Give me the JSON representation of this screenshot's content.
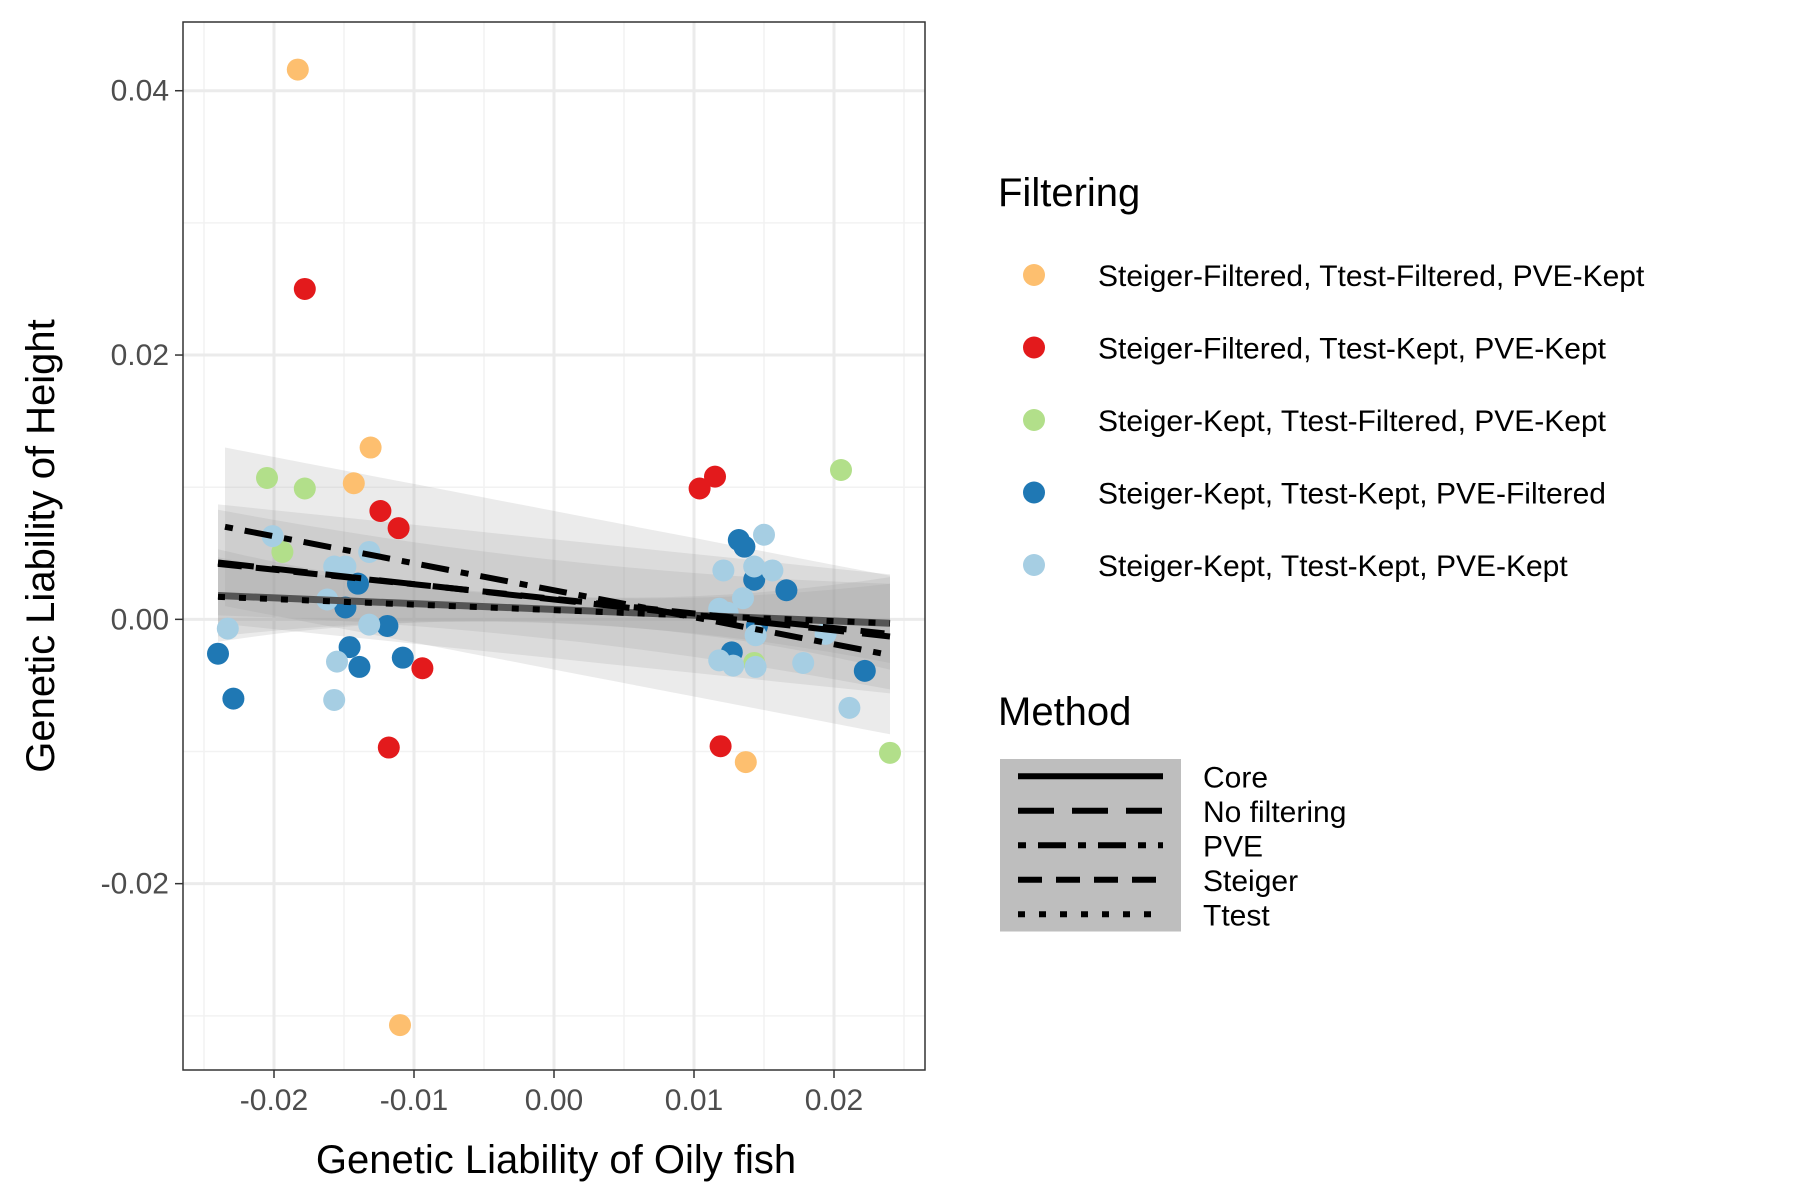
{
  "chart_data": {
    "type": "scatter",
    "title": "",
    "xlabel": "Genetic Liability of Oily fish",
    "ylabel": "Genetic Liability of Height",
    "xlim": [
      -0.0265,
      0.0265
    ],
    "ylim": [
      -0.0341,
      0.0452
    ],
    "x_ticks": [
      -0.02,
      -0.01,
      0.0,
      0.01,
      0.02
    ],
    "x_tick_labels": [
      "-0.02",
      "-0.01",
      "0.00",
      "0.01",
      "0.02"
    ],
    "y_ticks": [
      -0.02,
      0.0,
      0.02,
      0.04
    ],
    "y_tick_labels": [
      "-0.02",
      "0.00",
      "0.02",
      "0.04"
    ],
    "grid": true,
    "legend_position": "right",
    "filtering_legend": {
      "title": "Filtering",
      "entries": [
        {
          "label": "Steiger-Filtered, Ttest-Filtered, PVE-Kept",
          "color": "#FDBF6F"
        },
        {
          "label": "Steiger-Filtered, Ttest-Kept, PVE-Kept",
          "color": "#E31A1C"
        },
        {
          "label": "Steiger-Kept, Ttest-Filtered, PVE-Kept",
          "color": "#B2DF8A"
        },
        {
          "label": "Steiger-Kept, Ttest-Kept, PVE-Filtered",
          "color": "#1F78B4"
        },
        {
          "label": "Steiger-Kept, Ttest-Kept, PVE-Kept",
          "color": "#A6CEE3"
        }
      ]
    },
    "method_legend": {
      "title": "Method",
      "entries": [
        {
          "label": "Core",
          "dash": "none"
        },
        {
          "label": "No filtering",
          "dash": "long-dash"
        },
        {
          "label": "PVE",
          "dash": "dot-dash"
        },
        {
          "label": "Steiger",
          "dash": "dash"
        },
        {
          "label": "Ttest",
          "dash": "dotted"
        }
      ]
    },
    "series": [
      {
        "name": "Steiger-Filtered, Ttest-Filtered, PVE-Kept",
        "color": "#FDBF6F",
        "points": [
          [
            -0.0183,
            0.0416
          ],
          [
            -0.0131,
            0.013
          ],
          [
            -0.0143,
            0.0103
          ],
          [
            0.0137,
            -0.0108
          ],
          [
            -0.011,
            -0.0307
          ]
        ]
      },
      {
        "name": "Steiger-Filtered, Ttest-Kept, PVE-Kept",
        "color": "#E31A1C",
        "points": [
          [
            -0.0178,
            0.025
          ],
          [
            -0.0124,
            0.0082
          ],
          [
            -0.0111,
            0.0069
          ],
          [
            -0.0094,
            -0.0037
          ],
          [
            -0.0118,
            -0.0097
          ],
          [
            0.0104,
            0.0099
          ],
          [
            0.0115,
            0.0108
          ],
          [
            0.0119,
            -0.0096
          ]
        ]
      },
      {
        "name": "Steiger-Kept, Ttest-Filtered, PVE-Kept",
        "color": "#B2DF8A",
        "points": [
          [
            -0.0205,
            0.0107
          ],
          [
            -0.0178,
            0.0099
          ],
          [
            -0.0194,
            0.0051
          ],
          [
            0.0205,
            0.0113
          ],
          [
            0.0143,
            -0.0033
          ],
          [
            0.024,
            -0.0101
          ]
        ]
      },
      {
        "name": "Steiger-Kept, Ttest-Kept, PVE-Filtered",
        "color": "#1F78B4",
        "points": [
          [
            -0.024,
            -0.0026
          ],
          [
            -0.0229,
            -0.006
          ],
          [
            -0.0146,
            -0.0021
          ],
          [
            -0.0139,
            -0.0036
          ],
          [
            -0.0119,
            -0.0005
          ],
          [
            -0.0108,
            -0.0029
          ],
          [
            -0.014,
            0.0027
          ],
          [
            -0.0149,
            0.0009
          ],
          [
            0.0132,
            0.006
          ],
          [
            0.0136,
            0.0055
          ],
          [
            0.0143,
            0.003
          ],
          [
            0.0166,
            0.0022
          ],
          [
            0.0127,
            -0.0025
          ],
          [
            0.0222,
            -0.0039
          ],
          [
            0.0145,
            -0.0005
          ]
        ]
      },
      {
        "name": "Steiger-Kept, Ttest-Kept, PVE-Kept",
        "color": "#A6CEE3",
        "points": [
          [
            -0.0233,
            -0.0007
          ],
          [
            -0.0201,
            0.0063
          ],
          [
            -0.0157,
            0.004
          ],
          [
            -0.0149,
            0.004
          ],
          [
            -0.0132,
            0.0051
          ],
          [
            -0.0162,
            0.0015
          ],
          [
            -0.0155,
            -0.0032
          ],
          [
            -0.0157,
            -0.0061
          ],
          [
            -0.0132,
            -0.0004
          ],
          [
            0.015,
            0.0064
          ],
          [
            0.0121,
            0.0037
          ],
          [
            0.0143,
            0.004
          ],
          [
            0.0156,
            0.0037
          ],
          [
            0.0135,
            0.0016
          ],
          [
            0.0118,
            0.0008
          ],
          [
            0.0124,
            0.0005
          ],
          [
            0.0118,
            -0.0031
          ],
          [
            0.0128,
            -0.0035
          ],
          [
            0.0144,
            -0.0036
          ],
          [
            0.0144,
            -0.0012
          ],
          [
            0.0178,
            -0.0033
          ],
          [
            0.0194,
            -0.0011
          ],
          [
            0.0211,
            -0.0067
          ]
        ]
      }
    ],
    "fit_lines": [
      {
        "method": "Core",
        "x": [
          -0.024,
          0.024
        ],
        "y": [
          0.0018,
          -0.0003
        ],
        "band": [
          0.001,
          0.0035
        ]
      },
      {
        "method": "No filtering",
        "x": [
          -0.024,
          0.024
        ],
        "y": [
          0.0043,
          -0.0013
        ],
        "band": [
          0.003,
          0.004
        ]
      },
      {
        "method": "PVE",
        "x": [
          -0.0235,
          0.024
        ],
        "y": [
          0.007,
          -0.0027
        ],
        "band": [
          0.006,
          0.006
        ]
      },
      {
        "method": "Steiger",
        "x": [
          -0.024,
          0.024
        ],
        "y": [
          0.0042,
          -0.0011
        ],
        "band": [
          0.0045,
          0.0045
        ]
      },
      {
        "method": "Ttest",
        "x": [
          -0.024,
          0.024
        ],
        "y": [
          0.0017,
          -0.0003
        ],
        "band": [
          0.001,
          0.003
        ]
      }
    ]
  }
}
